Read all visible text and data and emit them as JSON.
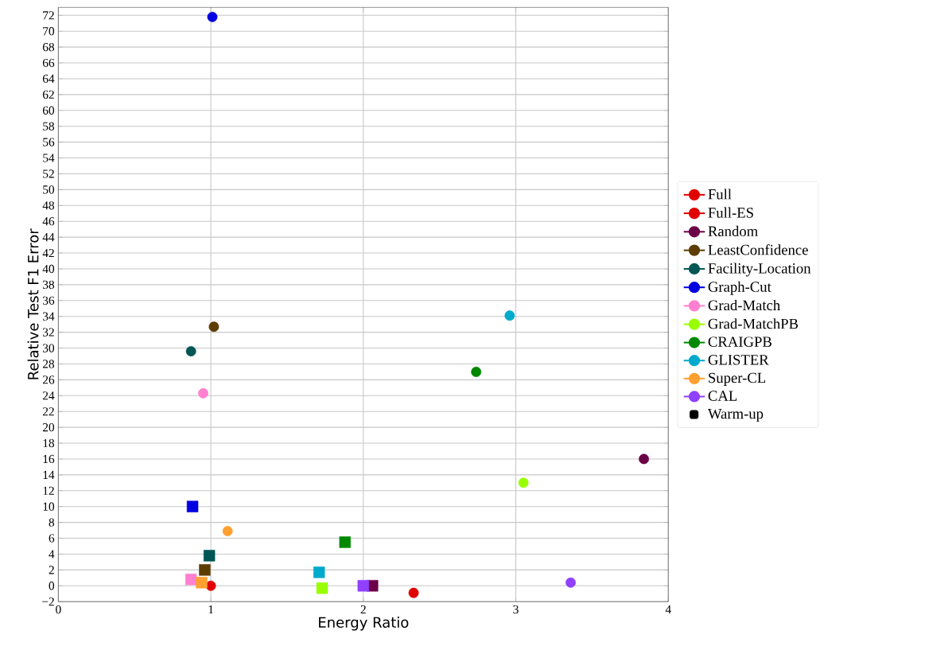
{
  "chart_data": {
    "type": "scatter",
    "xlabel": "Energy Ratio",
    "ylabel": "Relative Test F1 Error",
    "xlim": [
      0,
      4
    ],
    "ylim": [
      -2,
      73
    ],
    "xticks": [
      0,
      1,
      2,
      3,
      4
    ],
    "yticks": [
      {
        "value": -2,
        "label": "−2"
      },
      0,
      2,
      4,
      6,
      8,
      10,
      12,
      14,
      16,
      18,
      20,
      22,
      24,
      26,
      28,
      30,
      32,
      34,
      36,
      38,
      40,
      42,
      44,
      46,
      48,
      50,
      52,
      54,
      56,
      58,
      60,
      62,
      64,
      66,
      68,
      70,
      72
    ],
    "grid": true,
    "legend": "right",
    "annotations": [
      "Warm-up"
    ],
    "series": [
      {
        "name": "Full",
        "color": "#e00000",
        "marker": "circle",
        "x": [
          1.0
        ],
        "values": [
          0
        ]
      },
      {
        "name": "Full-ES",
        "color": "#e00000",
        "marker": "circle",
        "x": [
          2.33
        ],
        "values": [
          -0.9
        ]
      },
      {
        "name": "Random",
        "color": "#6b0047",
        "marker": "circle",
        "x": [
          3.84
        ],
        "values": [
          16.0
        ]
      },
      {
        "name": "LeastConfidence",
        "color": "#5c3d00",
        "marker": "circle",
        "x": [
          1.02
        ],
        "values": [
          32.7
        ]
      },
      {
        "name": "Facility-Location",
        "color": "#005555",
        "marker": "circle",
        "x": [
          0.87
        ],
        "values": [
          29.6
        ]
      },
      {
        "name": "Graph-Cut",
        "color": "#0000e0",
        "marker": "circle",
        "x": [
          1.01
        ],
        "values": [
          71.8
        ]
      },
      {
        "name": "Grad-Match",
        "color": "#ff80d0",
        "marker": "circle",
        "x": [
          0.95
        ],
        "values": [
          24.3
        ]
      },
      {
        "name": "Grad-MatchPB",
        "color": "#99ff00",
        "marker": "circle",
        "x": [
          3.05
        ],
        "values": [
          13.0
        ]
      },
      {
        "name": "CRAIGPB",
        "color": "#008800",
        "marker": "circle",
        "x": [
          2.74
        ],
        "values": [
          27.0
        ]
      },
      {
        "name": "GLISTER",
        "color": "#00aacc",
        "marker": "circle",
        "x": [
          2.96
        ],
        "values": [
          34.1
        ]
      },
      {
        "name": "Super-CL",
        "color": "#ffa030",
        "marker": "circle",
        "x": [
          1.11
        ],
        "values": [
          6.9
        ]
      },
      {
        "name": "CAL",
        "color": "#9040ff",
        "marker": "circle",
        "x": [
          3.36
        ],
        "values": [
          0.4
        ]
      },
      {
        "color": "#6b0047",
        "marker": "square",
        "x": [
          2.06
        ],
        "values": [
          0
        ]
      },
      {
        "color": "#5c3d00",
        "marker": "square",
        "x": [
          0.96
        ],
        "values": [
          2.0
        ]
      },
      {
        "color": "#005555",
        "marker": "square",
        "x": [
          0.99
        ],
        "values": [
          3.8
        ]
      },
      {
        "color": "#0000e0",
        "marker": "square",
        "x": [
          0.88
        ],
        "values": [
          10.0
        ]
      },
      {
        "color": "#ff80d0",
        "marker": "square",
        "x": [
          0.87
        ],
        "values": [
          0.8
        ]
      },
      {
        "color": "#99ff00",
        "marker": "square",
        "x": [
          1.73
        ],
        "values": [
          -0.3
        ]
      },
      {
        "color": "#008800",
        "marker": "square",
        "x": [
          1.88
        ],
        "values": [
          5.5
        ]
      },
      {
        "color": "#00aacc",
        "marker": "square",
        "x": [
          1.71
        ],
        "values": [
          1.7
        ]
      },
      {
        "color": "#ffa030",
        "marker": "square",
        "x": [
          0.94
        ],
        "values": [
          0.4
        ]
      },
      {
        "color": "#9040ff",
        "marker": "square",
        "x": [
          2.0
        ],
        "values": [
          0
        ]
      }
    ]
  }
}
